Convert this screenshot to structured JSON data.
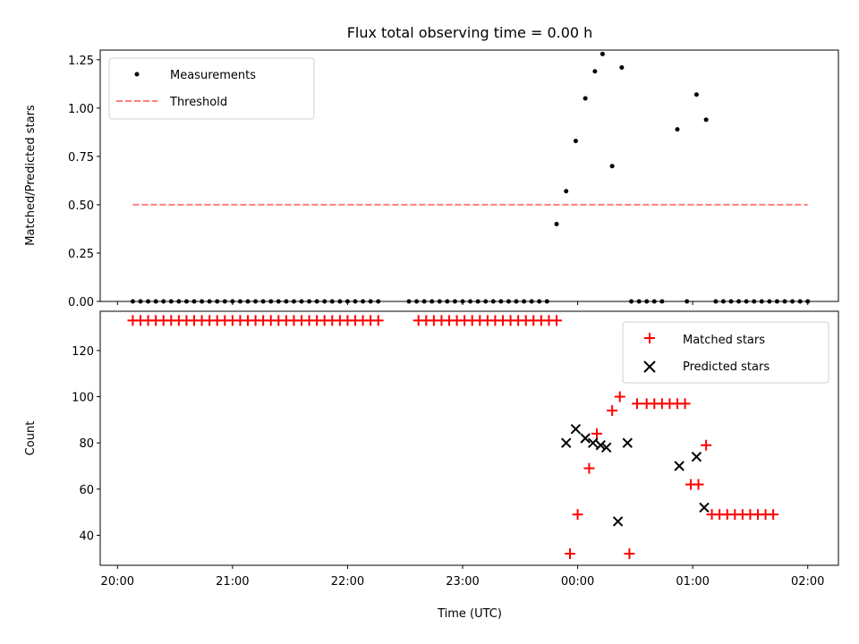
{
  "chart_data": [
    {
      "type": "scatter",
      "title": "Flux total observing time = 0.00 h",
      "xlabel": "",
      "ylabel": "Matched/Predicted stars",
      "x_unit": "minutes from 20:00 UTC",
      "xlim": [
        -9,
        376
      ],
      "ylim": [
        0,
        1.3
      ],
      "yticks": [
        0.0,
        0.25,
        0.5,
        0.75,
        1.0,
        1.25
      ],
      "ytick_labels": [
        "0.00",
        "0.25",
        "0.50",
        "0.75",
        "1.00",
        "1.25"
      ],
      "legend": {
        "position": "top-left",
        "entries": [
          "Measurements",
          "Threshold"
        ]
      },
      "series": [
        {
          "name": "Measurements",
          "kind": "points",
          "color": "#000000",
          "points": [
            [
              8,
              0
            ],
            [
              12,
              0
            ],
            [
              16,
              0
            ],
            [
              20,
              0
            ],
            [
              24,
              0
            ],
            [
              28,
              0
            ],
            [
              32,
              0
            ],
            [
              36,
              0
            ],
            [
              40,
              0
            ],
            [
              44,
              0
            ],
            [
              48,
              0
            ],
            [
              52,
              0
            ],
            [
              56,
              0
            ],
            [
              60,
              0
            ],
            [
              64,
              0
            ],
            [
              68,
              0
            ],
            [
              72,
              0
            ],
            [
              76,
              0
            ],
            [
              80,
              0
            ],
            [
              84,
              0
            ],
            [
              88,
              0
            ],
            [
              92,
              0
            ],
            [
              96,
              0
            ],
            [
              100,
              0
            ],
            [
              104,
              0
            ],
            [
              108,
              0
            ],
            [
              112,
              0
            ],
            [
              116,
              0
            ],
            [
              120,
              0
            ],
            [
              124,
              0
            ],
            [
              128,
              0
            ],
            [
              132,
              0
            ],
            [
              136,
              0
            ],
            [
              152,
              0
            ],
            [
              156,
              0
            ],
            [
              160,
              0
            ],
            [
              164,
              0
            ],
            [
              168,
              0
            ],
            [
              172,
              0
            ],
            [
              176,
              0
            ],
            [
              180,
              0
            ],
            [
              184,
              0
            ],
            [
              188,
              0
            ],
            [
              192,
              0
            ],
            [
              196,
              0
            ],
            [
              200,
              0
            ],
            [
              204,
              0
            ],
            [
              208,
              0
            ],
            [
              212,
              0
            ],
            [
              216,
              0
            ],
            [
              220,
              0
            ],
            [
              224,
              0
            ],
            [
              229,
              0.4
            ],
            [
              234,
              0.57
            ],
            [
              239,
              0.83
            ],
            [
              244,
              1.05
            ],
            [
              249,
              1.19
            ],
            [
              253,
              1.28
            ],
            [
              258,
              0.7
            ],
            [
              263,
              1.21
            ],
            [
              268,
              0
            ],
            [
              272,
              0
            ],
            [
              276,
              0
            ],
            [
              280,
              0
            ],
            [
              284,
              0
            ],
            [
              297,
              0
            ],
            [
              292,
              0.89
            ],
            [
              302,
              1.07
            ],
            [
              307,
              0.94
            ],
            [
              312,
              0
            ],
            [
              316,
              0
            ],
            [
              320,
              0
            ],
            [
              324,
              0
            ],
            [
              328,
              0
            ],
            [
              332,
              0
            ],
            [
              336,
              0
            ],
            [
              340,
              0
            ],
            [
              344,
              0
            ],
            [
              348,
              0
            ],
            [
              352,
              0
            ],
            [
              356,
              0
            ],
            [
              360,
              0
            ]
          ]
        },
        {
          "name": "Threshold",
          "kind": "dashed-line",
          "color": "#ff7f7f",
          "points": [
            [
              8,
              0.5
            ],
            [
              360,
              0.5
            ]
          ]
        }
      ]
    },
    {
      "type": "scatter",
      "title": "",
      "xlabel": "Time (UTC)",
      "ylabel": "Count",
      "x_unit": "minutes from 20:00 UTC",
      "xlim": [
        -9,
        376
      ],
      "ylim": [
        27,
        137
      ],
      "xticks": [
        0,
        60,
        120,
        180,
        240,
        300,
        360
      ],
      "xtick_labels": [
        "20:00",
        "21:00",
        "22:00",
        "23:00",
        "00:00",
        "01:00",
        "02:00"
      ],
      "yticks": [
        40,
        60,
        80,
        100,
        120
      ],
      "ytick_labels": [
        "40",
        "60",
        "80",
        "100",
        "120"
      ],
      "legend": {
        "position": "top-right",
        "entries": [
          "Matched stars",
          "Predicted stars"
        ]
      },
      "series": [
        {
          "name": "Matched stars",
          "kind": "plus",
          "color": "#ff0000",
          "points": [
            [
              8,
              133
            ],
            [
              12,
              133
            ],
            [
              16,
              133
            ],
            [
              20,
              133
            ],
            [
              24,
              133
            ],
            [
              28,
              133
            ],
            [
              32,
              133
            ],
            [
              36,
              133
            ],
            [
              40,
              133
            ],
            [
              44,
              133
            ],
            [
              48,
              133
            ],
            [
              52,
              133
            ],
            [
              56,
              133
            ],
            [
              60,
              133
            ],
            [
              64,
              133
            ],
            [
              68,
              133
            ],
            [
              72,
              133
            ],
            [
              76,
              133
            ],
            [
              80,
              133
            ],
            [
              84,
              133
            ],
            [
              88,
              133
            ],
            [
              92,
              133
            ],
            [
              96,
              133
            ],
            [
              100,
              133
            ],
            [
              104,
              133
            ],
            [
              108,
              133
            ],
            [
              112,
              133
            ],
            [
              116,
              133
            ],
            [
              120,
              133
            ],
            [
              124,
              133
            ],
            [
              128,
              133
            ],
            [
              132,
              133
            ],
            [
              136,
              133
            ],
            [
              157,
              133
            ],
            [
              161,
              133
            ],
            [
              165,
              133
            ],
            [
              169,
              133
            ],
            [
              173,
              133
            ],
            [
              177,
              133
            ],
            [
              181,
              133
            ],
            [
              185,
              133
            ],
            [
              189,
              133
            ],
            [
              193,
              133
            ],
            [
              197,
              133
            ],
            [
              201,
              133
            ],
            [
              205,
              133
            ],
            [
              209,
              133
            ],
            [
              213,
              133
            ],
            [
              217,
              133
            ],
            [
              221,
              133
            ],
            [
              225,
              133
            ],
            [
              229,
              133
            ],
            [
              236,
              32
            ],
            [
              240,
              49
            ],
            [
              246,
              69
            ],
            [
              250,
              84
            ],
            [
              258,
              94
            ],
            [
              262,
              100
            ],
            [
              267,
              32
            ],
            [
              271,
              97
            ],
            [
              276,
              97
            ],
            [
              280,
              97
            ],
            [
              284,
              97
            ],
            [
              288,
              97
            ],
            [
              292,
              97
            ],
            [
              296,
              97
            ],
            [
              299,
              62
            ],
            [
              303,
              62
            ],
            [
              307,
              79
            ],
            [
              310,
              49
            ],
            [
              314,
              49
            ],
            [
              318,
              49
            ],
            [
              322,
              49
            ],
            [
              326,
              49
            ],
            [
              330,
              49
            ],
            [
              334,
              49
            ],
            [
              338,
              49
            ],
            [
              342,
              49
            ]
          ]
        },
        {
          "name": "Predicted stars",
          "kind": "x",
          "color": "#000000",
          "points": [
            [
              234,
              80
            ],
            [
              239,
              86
            ],
            [
              244,
              82
            ],
            [
              248,
              80
            ],
            [
              252,
              79
            ],
            [
              255,
              78
            ],
            [
              261,
              46
            ],
            [
              266,
              80
            ],
            [
              293,
              70
            ],
            [
              302,
              74
            ],
            [
              306,
              52
            ]
          ]
        }
      ]
    }
  ]
}
